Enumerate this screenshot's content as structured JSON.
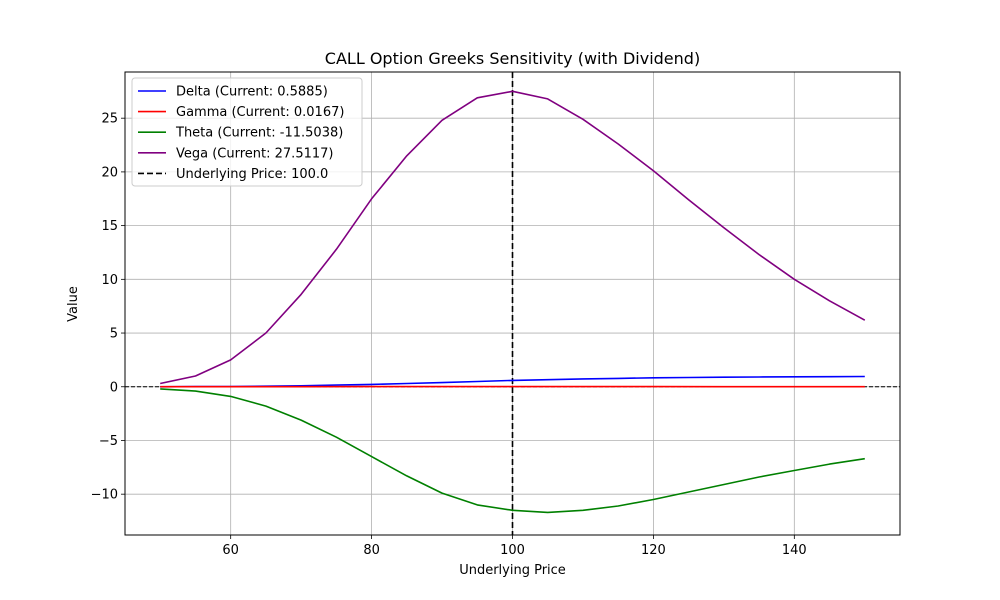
{
  "chart_data": {
    "type": "line",
    "title": "CALL Option Greeks Sensitivity (with Dividend)",
    "xlabel": "Underlying Price",
    "ylabel": "Value",
    "xlim": [
      45,
      155
    ],
    "ylim": [
      -13.8,
      29.3
    ],
    "xticks": [
      60,
      80,
      100,
      120,
      140
    ],
    "yticks": [
      -10,
      -5,
      0,
      5,
      10,
      15,
      20,
      25
    ],
    "xtick_labels": [
      "60",
      "80",
      "100",
      "120",
      "140"
    ],
    "ytick_labels": [
      "−10",
      "−5",
      "0",
      "5",
      "10",
      "15",
      "20",
      "25"
    ],
    "grid": true,
    "legend_position": "upper-left",
    "vline": {
      "x": 100,
      "label": "Underlying Price: 100.0",
      "color": "#000000",
      "style": "dashed"
    },
    "hline": {
      "y": 0,
      "color": "#000000",
      "style": "dashed"
    },
    "series": [
      {
        "name": "Delta (Current: 0.5885)",
        "color": "#0000ff",
        "x": [
          50,
          55,
          60,
          65,
          70,
          75,
          80,
          85,
          90,
          95,
          100,
          105,
          110,
          115,
          120,
          125,
          130,
          135,
          140,
          145,
          150
        ],
        "y": [
          0.0,
          0.01,
          0.02,
          0.05,
          0.09,
          0.15,
          0.22,
          0.3,
          0.39,
          0.49,
          0.59,
          0.66,
          0.73,
          0.78,
          0.83,
          0.86,
          0.89,
          0.91,
          0.93,
          0.94,
          0.95
        ]
      },
      {
        "name": "Gamma (Current: 0.0167)",
        "color": "#ff0000",
        "x": [
          50,
          60,
          70,
          80,
          90,
          100,
          110,
          120,
          130,
          140,
          150
        ],
        "y": [
          0.001,
          0.004,
          0.009,
          0.014,
          0.017,
          0.017,
          0.015,
          0.012,
          0.009,
          0.006,
          0.004
        ]
      },
      {
        "name": "Theta (Current: -11.5038)",
        "color": "#008000",
        "x": [
          50,
          55,
          60,
          65,
          70,
          75,
          80,
          85,
          90,
          95,
          100,
          105,
          110,
          115,
          120,
          125,
          130,
          135,
          140,
          145,
          150
        ],
        "y": [
          -0.2,
          -0.4,
          -0.9,
          -1.8,
          -3.1,
          -4.7,
          -6.5,
          -8.3,
          -9.9,
          -11.0,
          -11.5,
          -11.7,
          -11.5,
          -11.1,
          -10.5,
          -9.8,
          -9.1,
          -8.4,
          -7.8,
          -7.2,
          -6.7
        ]
      },
      {
        "name": "Vega (Current: 27.5117)",
        "color": "#800080",
        "x": [
          50,
          55,
          60,
          65,
          70,
          75,
          80,
          85,
          90,
          95,
          100,
          105,
          110,
          115,
          120,
          125,
          130,
          135,
          140,
          145,
          150
        ],
        "y": [
          0.3,
          1.0,
          2.5,
          5.0,
          8.6,
          12.8,
          17.5,
          21.5,
          24.8,
          26.9,
          27.5,
          26.8,
          24.9,
          22.6,
          20.1,
          17.4,
          14.8,
          12.3,
          10.0,
          8.0,
          6.2
        ]
      }
    ]
  }
}
